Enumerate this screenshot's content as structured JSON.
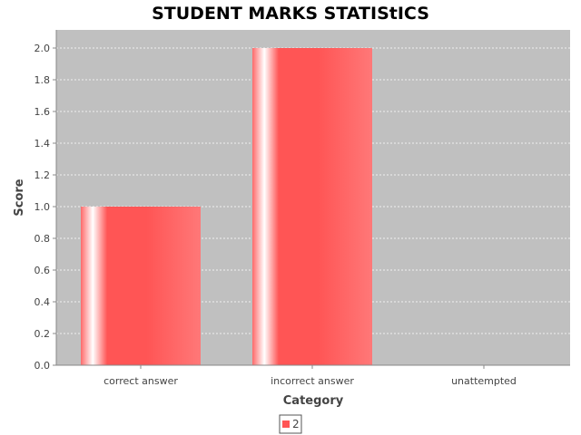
{
  "chart_data": {
    "type": "bar",
    "title": "STUDENT MARKS STATIStICS",
    "xlabel": "Category",
    "ylabel": "Score",
    "categories": [
      "correct answer",
      "incorrect answer",
      "unattempted"
    ],
    "series": [
      {
        "name": "2",
        "values": [
          1.0,
          2.0,
          0.0
        ],
        "color": "#ff5555"
      }
    ],
    "ylim": [
      0,
      2.1
    ],
    "yticks": [
      "0.0",
      "0.2",
      "0.4",
      "0.6",
      "0.8",
      "1.0",
      "1.2",
      "1.4",
      "1.6",
      "1.8",
      "2.0"
    ],
    "grid": true,
    "legend": "bottom-center",
    "plot_background": "#c0c0c0"
  }
}
